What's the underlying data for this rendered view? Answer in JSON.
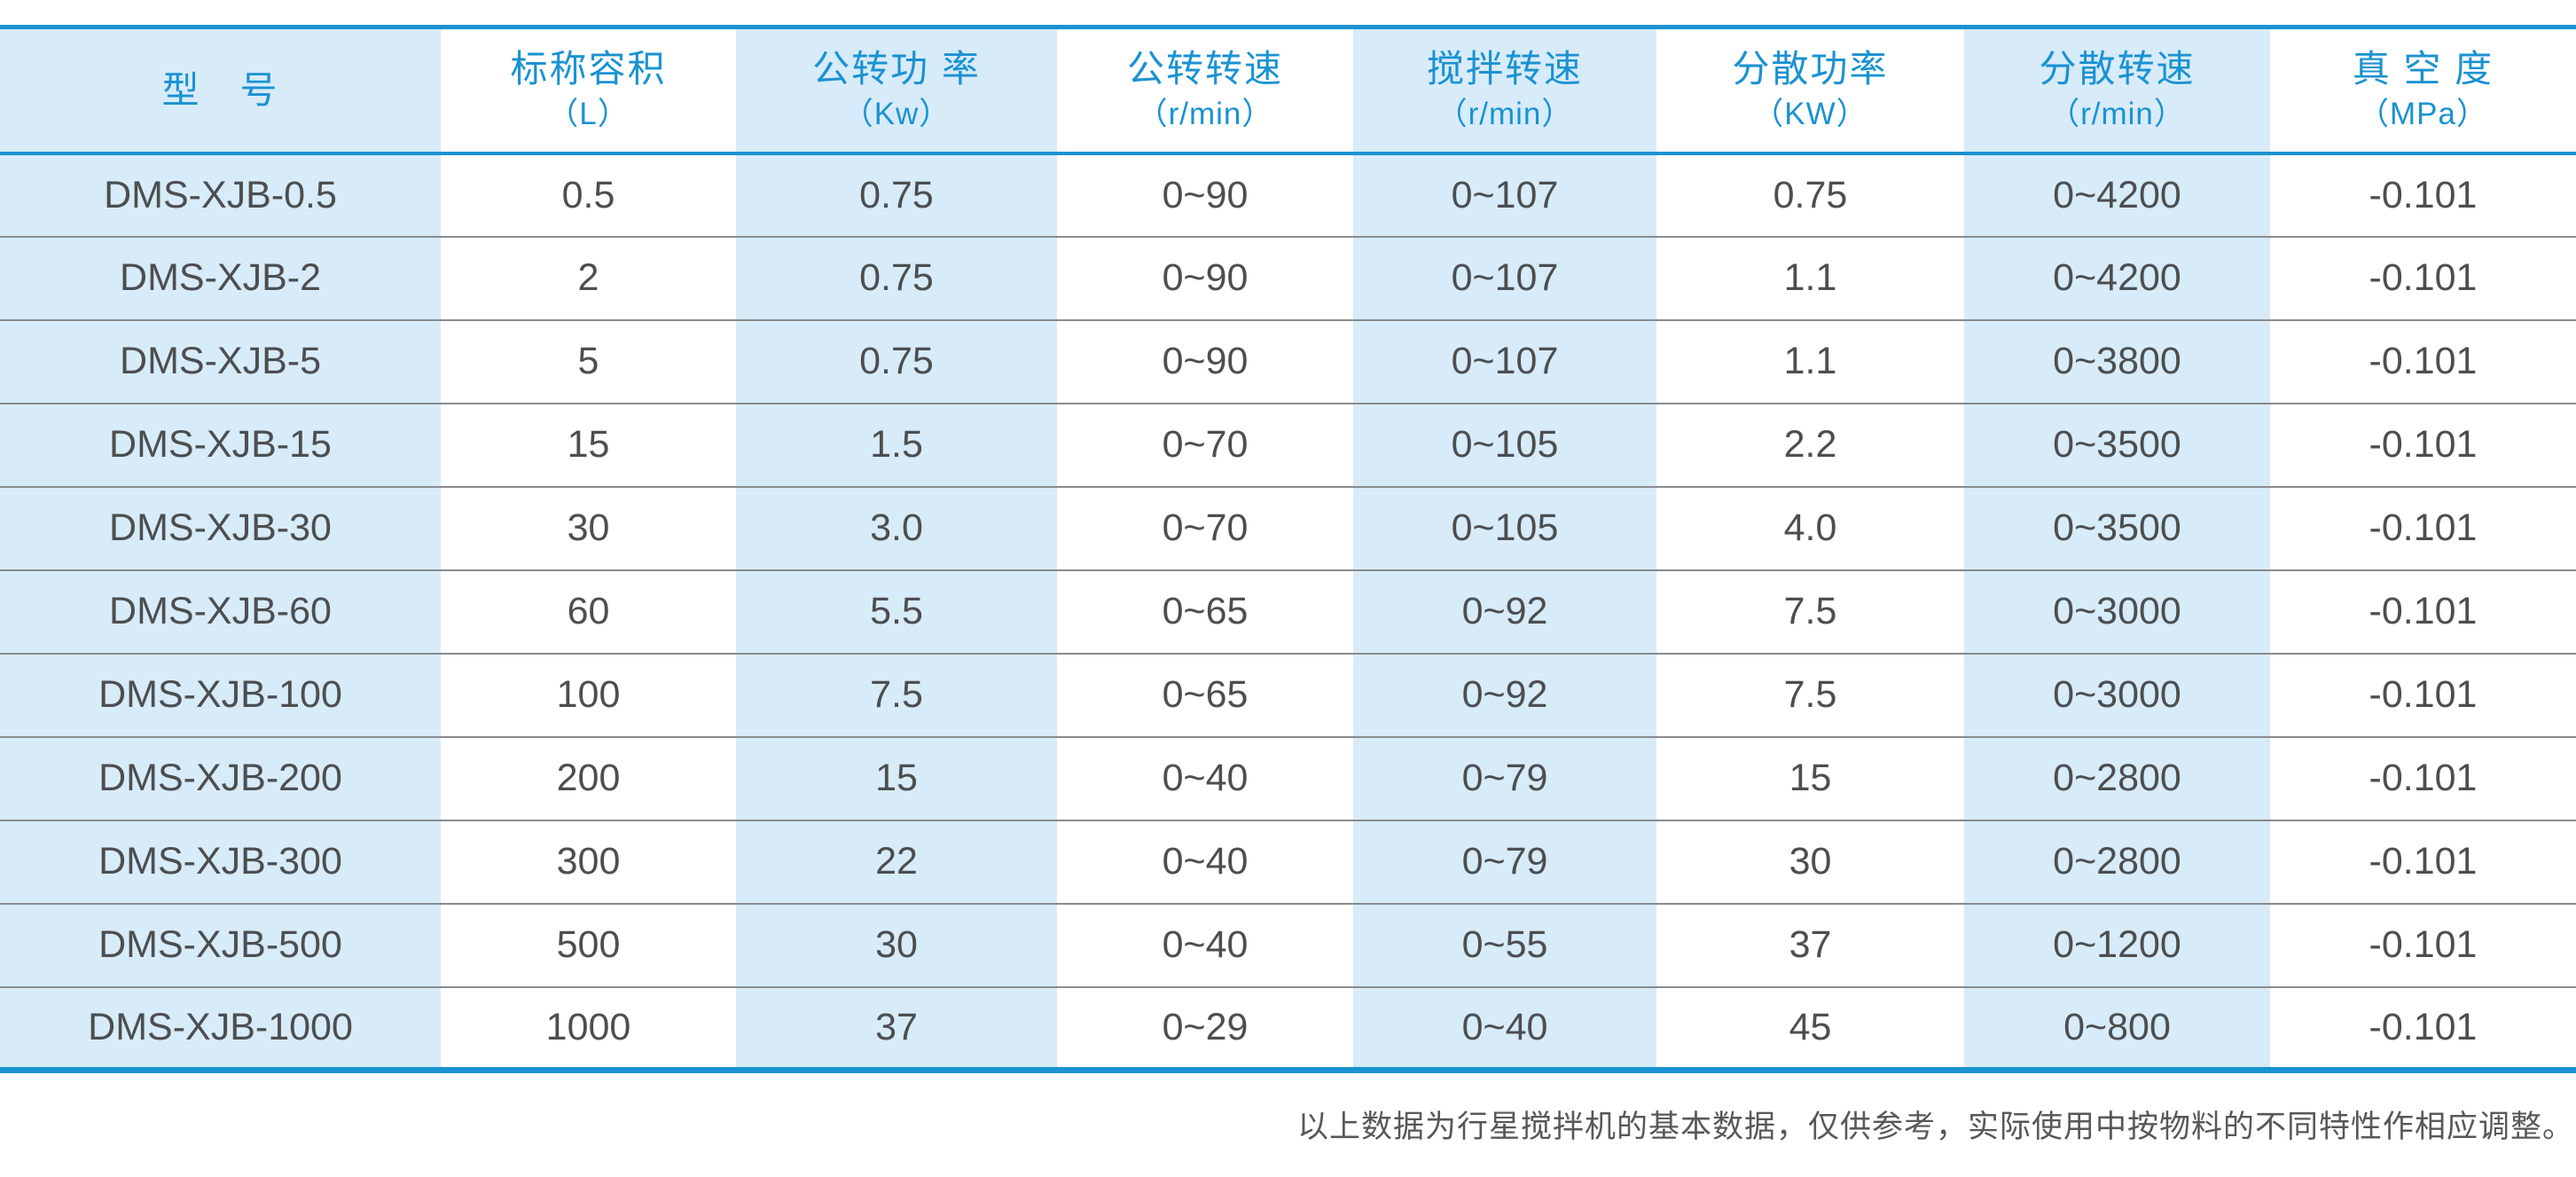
{
  "chart_data": {
    "type": "table",
    "title": "",
    "columns": [
      {
        "label": "型　号",
        "unit": ""
      },
      {
        "label": "标称容积",
        "unit": "（L）"
      },
      {
        "label": "公转功 率",
        "unit": "（Kw）"
      },
      {
        "label": "公转转速",
        "unit": "（r/min）"
      },
      {
        "label": "搅拌转速",
        "unit": "（r/min）"
      },
      {
        "label": "分散功率",
        "unit": "（KW）"
      },
      {
        "label": "分散转速",
        "unit": "（r/min）"
      },
      {
        "label": "真 空 度",
        "unit": "（MPa）"
      }
    ],
    "rows": [
      [
        "DMS-XJB-0.5",
        "0.5",
        "0.75",
        "0~90",
        "0~107",
        "0.75",
        "0~4200",
        "-0.101"
      ],
      [
        "DMS-XJB-2",
        "2",
        "0.75",
        "0~90",
        "0~107",
        "1.1",
        "0~4200",
        "-0.101"
      ],
      [
        "DMS-XJB-5",
        "5",
        "0.75",
        "0~90",
        "0~107",
        "1.1",
        "0~3800",
        "-0.101"
      ],
      [
        "DMS-XJB-15",
        "15",
        "1.5",
        "0~70",
        "0~105",
        "2.2",
        "0~3500",
        "-0.101"
      ],
      [
        "DMS-XJB-30",
        "30",
        "3.0",
        "0~70",
        "0~105",
        "4.0",
        "0~3500",
        "-0.101"
      ],
      [
        "DMS-XJB-60",
        "60",
        "5.5",
        "0~65",
        "0~92",
        "7.5",
        "0~3000",
        "-0.101"
      ],
      [
        "DMS-XJB-100",
        "100",
        "7.5",
        "0~65",
        "0~92",
        "7.5",
        "0~3000",
        "-0.101"
      ],
      [
        "DMS-XJB-200",
        "200",
        "15",
        "0~40",
        "0~79",
        "15",
        "0~2800",
        "-0.101"
      ],
      [
        "DMS-XJB-300",
        "300",
        "22",
        "0~40",
        "0~79",
        "30",
        "0~2800",
        "-0.101"
      ],
      [
        "DMS-XJB-500",
        "500",
        "30",
        "0~40",
        "0~55",
        "37",
        "0~1200",
        "-0.101"
      ],
      [
        "DMS-XJB-1000",
        "1000",
        "37",
        "0~29",
        "0~40",
        "45",
        "0~800",
        "-0.101"
      ]
    ],
    "layout": {
      "shaded_column_indexes": [
        0,
        2,
        4,
        6
      ],
      "grid": "horizontal-rules-only",
      "header_text_color": "#1b92d1"
    }
  },
  "footer": {
    "note": "以上数据为行星搅拌机的基本数据，仅供参考，实际使用中按物料的不同特性作相应调整。"
  },
  "colors": {
    "accent_blue": "#1b92d1",
    "shaded_column_bg": "#d7ebf9",
    "body_text": "#4d4e50",
    "row_separator": "#8a8b8d",
    "note_text": "#57585a"
  }
}
